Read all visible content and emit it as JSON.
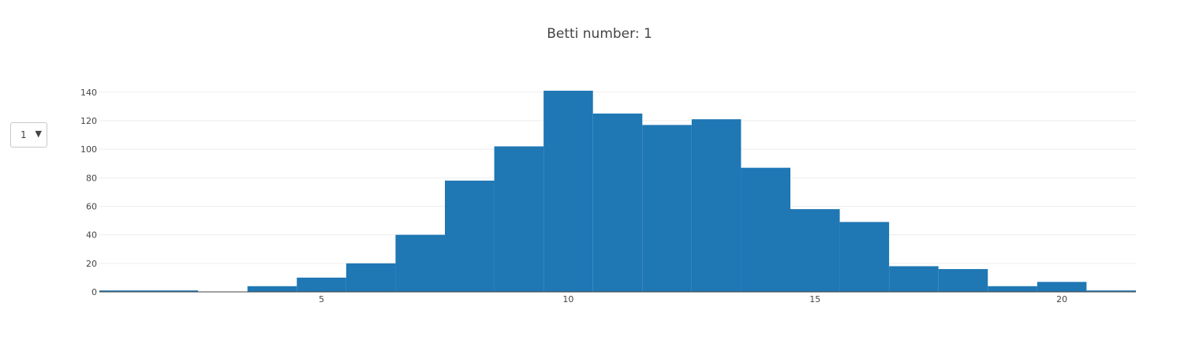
{
  "dropdown": {
    "selected": "1",
    "arrow_icon": "triangle-down-icon"
  },
  "colors": {
    "bar": "#1f77b4",
    "grid": "#eeeeee",
    "zero_line": "#444444"
  },
  "chart_data": {
    "type": "bar",
    "title": "Betti number: 1",
    "xlabel": "",
    "ylabel": "",
    "x": [
      1,
      2,
      3,
      4,
      5,
      6,
      7,
      8,
      9,
      10,
      11,
      12,
      13,
      14,
      15,
      16,
      17,
      18,
      19,
      20,
      21
    ],
    "values": [
      1,
      1,
      0,
      4,
      10,
      20,
      40,
      78,
      102,
      141,
      125,
      117,
      121,
      87,
      58,
      49,
      18,
      16,
      4,
      7,
      1
    ],
    "x_ticks": [
      5,
      10,
      15,
      20
    ],
    "y_ticks": [
      0,
      20,
      40,
      60,
      80,
      100,
      120,
      140
    ],
    "xlim": [
      0.5,
      21.5
    ],
    "ylim": [
      0,
      141
    ],
    "grid": true,
    "bar_color": "#1f77b4"
  }
}
